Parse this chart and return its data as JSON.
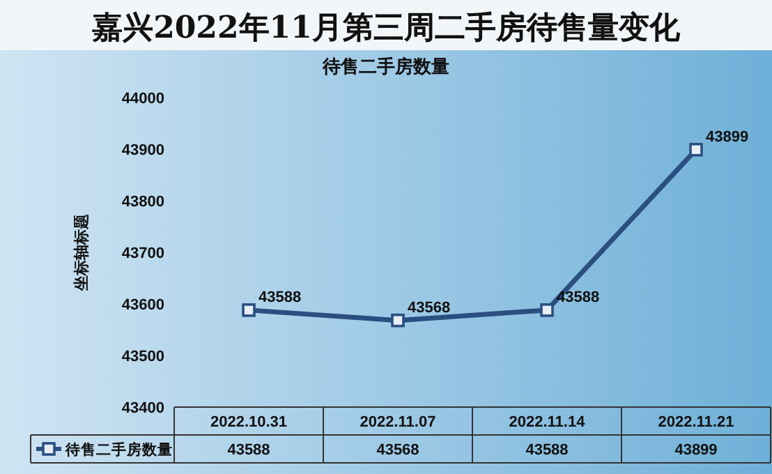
{
  "chart_data": {
    "type": "line",
    "title": "嘉兴2022年11月第三周二手房待售量变化",
    "subtitle": "待售二手房数量",
    "ylabel": "坐标轴标题",
    "categories": [
      "2022.10.31",
      "2022.11.07",
      "2022.11.14",
      "2022.11.21"
    ],
    "series": [
      {
        "name": "待售二手房数量",
        "color": "#2b4f81",
        "values": [
          43588,
          43568,
          43588,
          43899
        ]
      }
    ],
    "ylim": [
      43400,
      44000
    ],
    "yticks": [
      43400,
      43500,
      43600,
      43700,
      43800,
      43900,
      44000
    ],
    "annotations": [
      "43588",
      "43568",
      "43588",
      "43899"
    ],
    "data_labels": true,
    "legend": "bottom",
    "marker": "square"
  }
}
